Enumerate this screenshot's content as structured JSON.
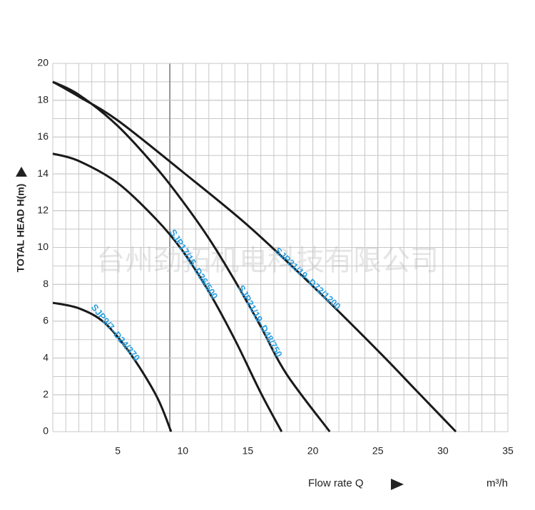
{
  "chart_data": {
    "type": "line",
    "ylabel": "TOTAL HEAD H(m)",
    "xlabel": "Flow rate Q",
    "xunit": "m³/h",
    "watermark": "台州劲拓机电科技有限公司",
    "xlim": [
      0,
      35
    ],
    "ylim": [
      0,
      20
    ],
    "xticks": [
      5,
      10,
      15,
      20,
      25,
      30,
      35
    ],
    "yticks": [
      0,
      2,
      4,
      6,
      8,
      10,
      12,
      14,
      16,
      18,
      20
    ],
    "grid": true,
    "series": [
      {
        "name": "SJP9/7–D24/370",
        "color": "#1a1a1a",
        "x": [
          0,
          2,
          4,
          6,
          8,
          9.1
        ],
        "values": [
          7,
          6.7,
          5.9,
          4.2,
          1.9,
          0
        ]
      },
      {
        "name": "SJP17/15–D36/500",
        "color": "#1a1a1a",
        "x": [
          0,
          2,
          5,
          8,
          10,
          12,
          14,
          16,
          17.6
        ],
        "values": [
          15.1,
          14.7,
          13.5,
          11.5,
          9.8,
          7.6,
          5.0,
          2.1,
          0
        ]
      },
      {
        "name": "SJP21/19–D48/750",
        "color": "#1a1a1a",
        "x": [
          0,
          2,
          5,
          8,
          10,
          12,
          14,
          16,
          18,
          21.3
        ],
        "values": [
          19,
          18.3,
          16.6,
          14.3,
          12.5,
          10.5,
          8.2,
          5.7,
          3.1,
          0
        ]
      },
      {
        "name": "SJP31/19–D72/1200",
        "color": "#1a1a1a",
        "x": [
          0,
          2,
          5,
          10,
          15,
          20,
          25,
          28,
          31
        ],
        "values": [
          19,
          18.2,
          16.9,
          14.1,
          11.2,
          7.9,
          4.4,
          2.2,
          0
        ]
      }
    ]
  }
}
